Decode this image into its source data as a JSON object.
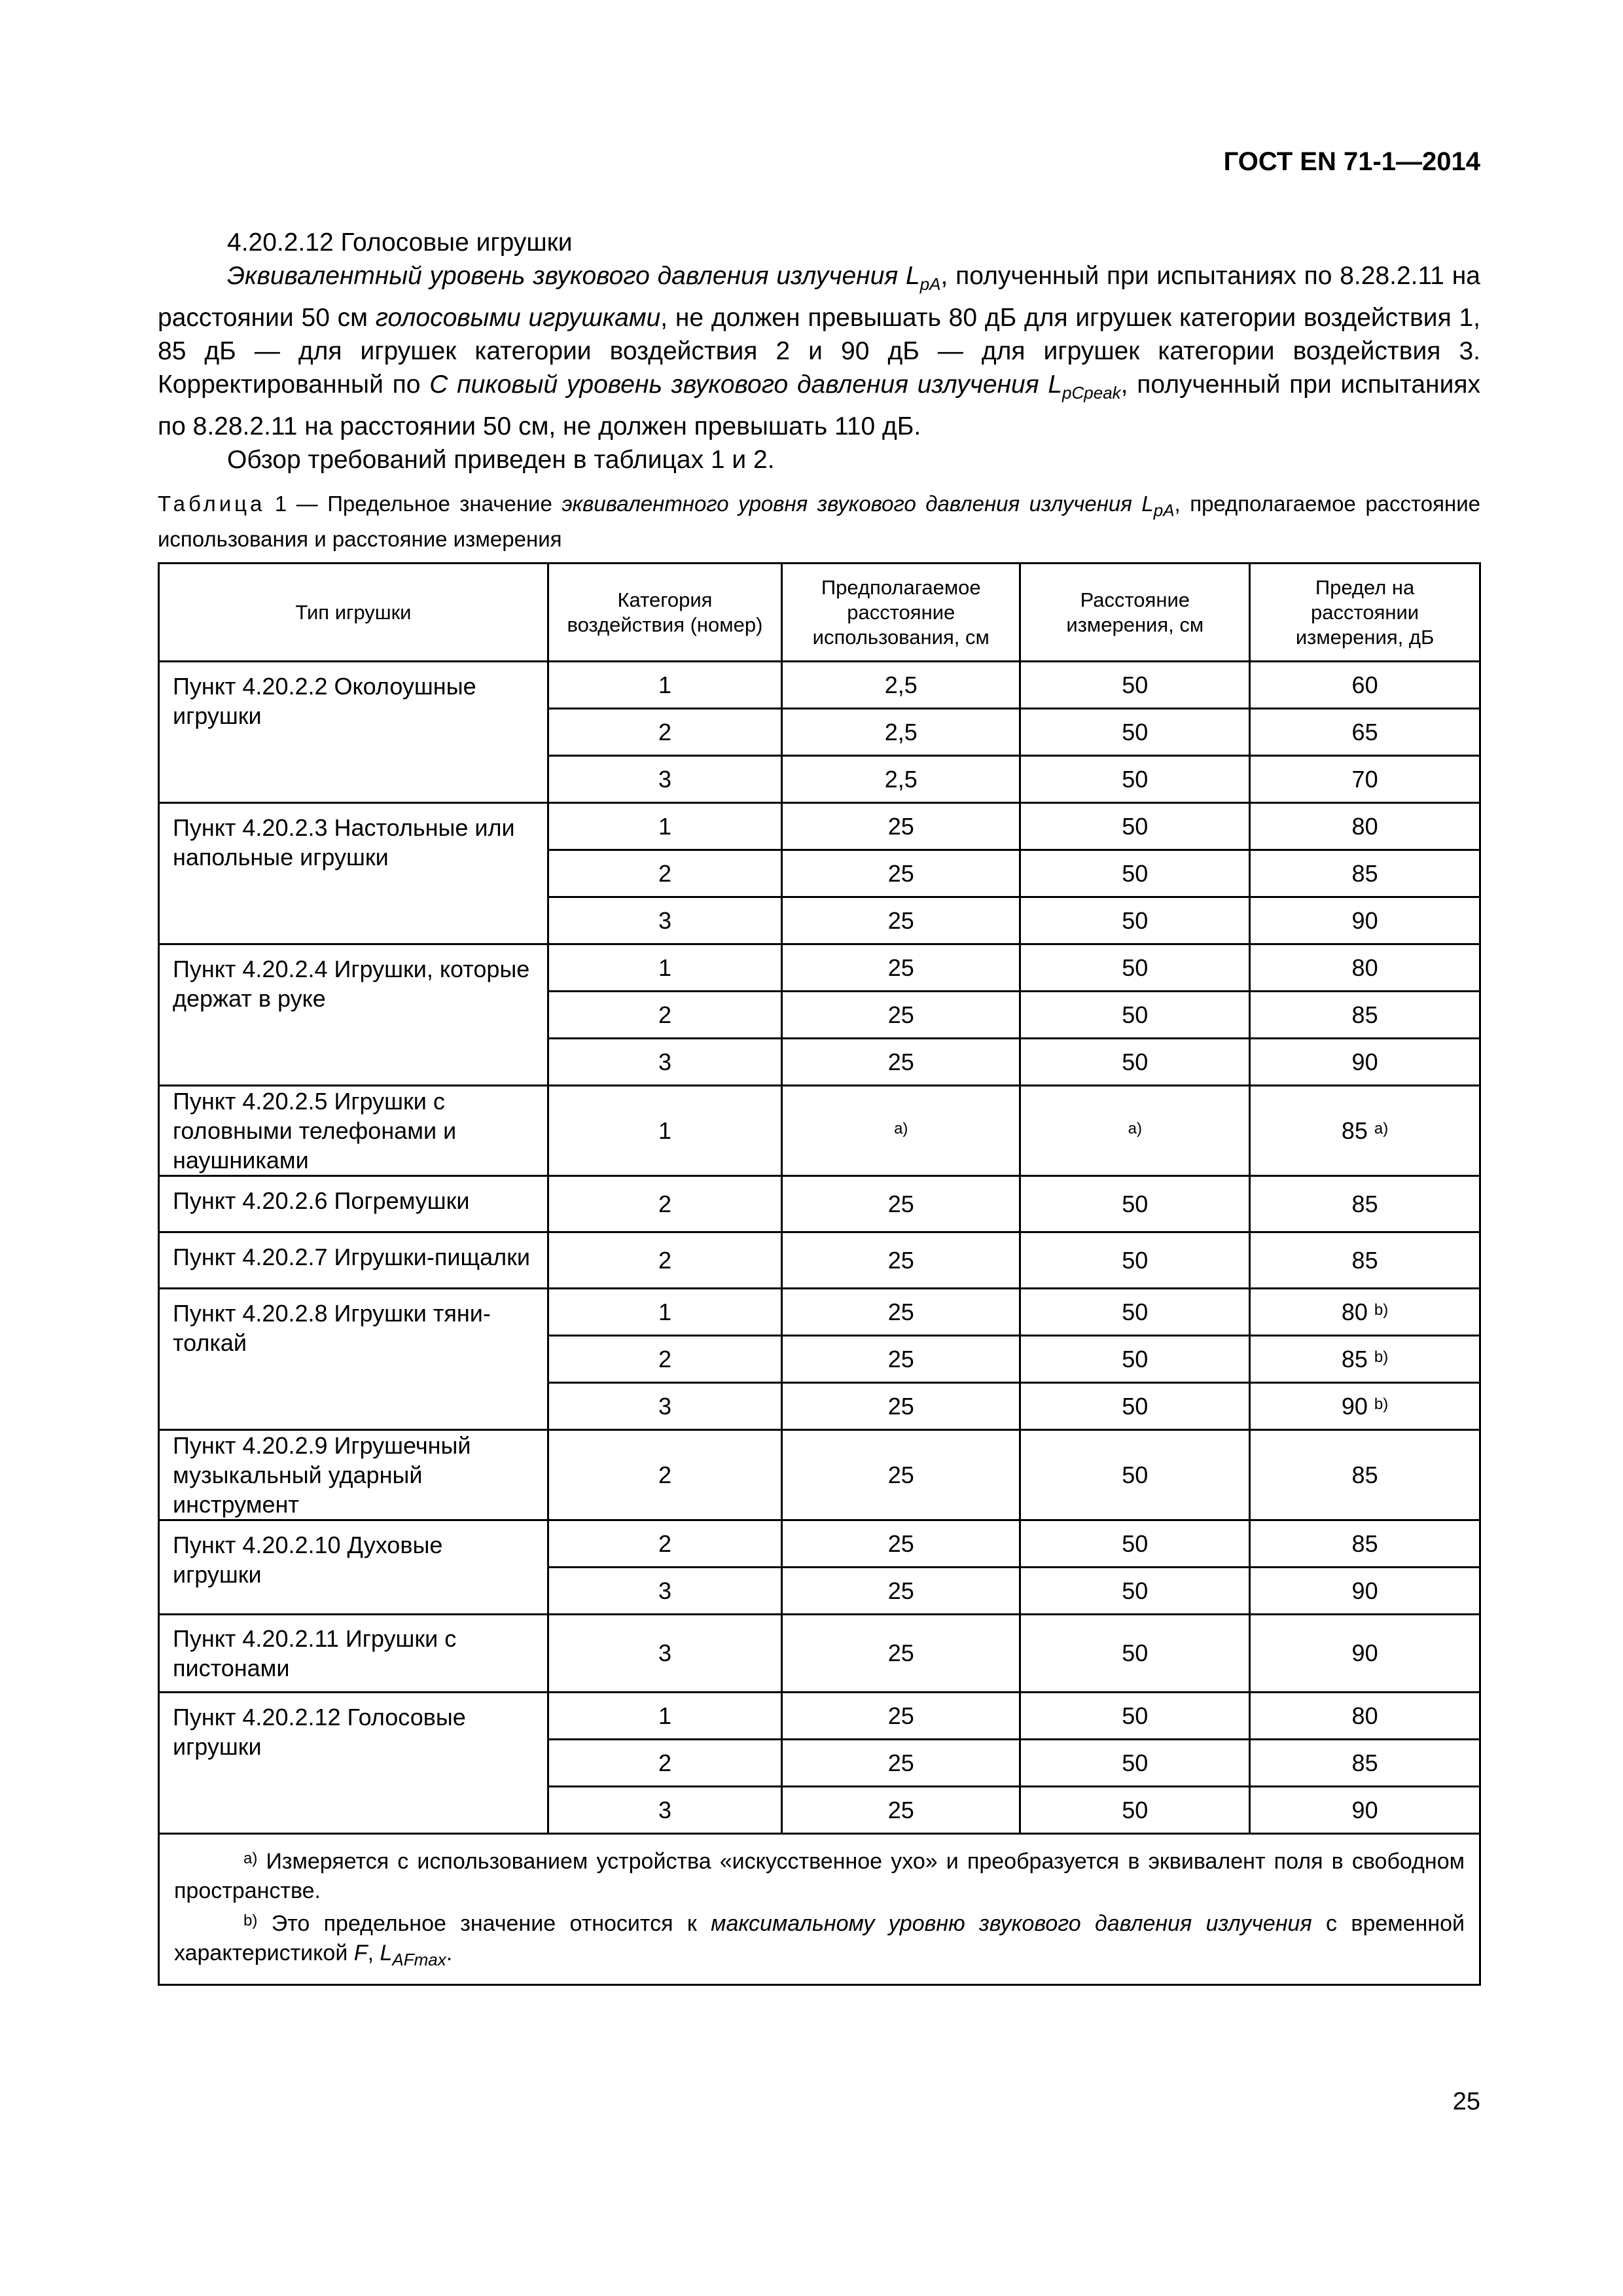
{
  "header": {
    "doc_id": "ГОСТ EN 71-1—2014"
  },
  "section": {
    "heading": "4.20.2.12 Голосовые игрушки",
    "p1": [
      {
        "t": "Эквивалентный уровень звукового давления излучения ",
        "i": true
      },
      {
        "t": "L",
        "i": true
      },
      {
        "t": "pA",
        "i": true,
        "sub": true
      },
      {
        "t": ", полученный при испытаниях по 8.28.2.11 на расстоянии 50 см "
      },
      {
        "t": "голосовыми игрушками",
        "i": true
      },
      {
        "t": ", не должен превышать 80 дБ для игрушек категории воздействия 1, 85 дБ — для игрушек категории воздействия 2 и 90 дБ — для игрушек категории воздействия 3. Корректированный по "
      },
      {
        "t": "С пиковый уровень звукового давления излучения L",
        "i": true
      },
      {
        "t": "pCpeak",
        "i": true,
        "sub": true
      },
      {
        "t": ", полученный при испытаниях по 8.28.2.11 на расстоянии 50 см, не должен превышать 110 дБ."
      }
    ],
    "p2": "Обзор требований приведен в таблицах 1 и 2."
  },
  "table": {
    "caption_label": "Таблица",
    "caption": [
      {
        "t": " 1 — Предельное значение "
      },
      {
        "t": "эквивалентного уровня звукового давления излучения L",
        "i": true
      },
      {
        "t": "pA",
        "i": true,
        "sub": true
      },
      {
        "t": ", предполагаемое расстояние использования и расстояние измерения"
      }
    ],
    "columns": [
      "Тип игрушки",
      "Категория воздействия (номер)",
      "Предполагаемое расстояние использования, см",
      "Расстояние измерения, см",
      "Предел на расстоянии измерения, дБ"
    ],
    "groups": [
      {
        "label": "Пункт 4.20.2.2 Околоушные игрушки",
        "rows": [
          [
            "1",
            "2,5",
            "50",
            "60"
          ],
          [
            "2",
            "2,5",
            "50",
            "65"
          ],
          [
            "3",
            "2,5",
            "50",
            "70"
          ]
        ]
      },
      {
        "label": "Пункт 4.20.2.3 Настольные или напольные игрушки",
        "rows": [
          [
            "1",
            "25",
            "50",
            "80"
          ],
          [
            "2",
            "25",
            "50",
            "85"
          ],
          [
            "3",
            "25",
            "50",
            "90"
          ]
        ]
      },
      {
        "label": "Пункт 4.20.2.4 Игрушки, которые держат в руке",
        "rows": [
          [
            "1",
            "25",
            "50",
            "80"
          ],
          [
            "2",
            "25",
            "50",
            "85"
          ],
          [
            "3",
            "25",
            "50",
            "90"
          ]
        ]
      },
      {
        "label": "Пункт 4.20.2.5 Игрушки с головными телефонами и наушниками",
        "tall": true,
        "rows": [
          [
            "1",
            "^a)",
            "^a)",
            "85 ^a)"
          ]
        ]
      },
      {
        "label": "Пункт 4.20.2.6 Погремушки",
        "rows": [
          [
            "2",
            "25",
            "50",
            "85"
          ]
        ]
      },
      {
        "label": "Пункт 4.20.2.7 Игрушки-пищалки",
        "rows": [
          [
            "2",
            "25",
            "50",
            "85"
          ]
        ]
      },
      {
        "label": "Пункт 4.20.2.8 Игрушки тяни-толкай",
        "rows": [
          [
            "1",
            "25",
            "50",
            "80 ^b)"
          ],
          [
            "2",
            "25",
            "50",
            "85 ^b)"
          ],
          [
            "3",
            "25",
            "50",
            "90 ^b)"
          ]
        ]
      },
      {
        "label": "Пункт 4.20.2.9 Игрушечный музыкальный ударный инструмент",
        "tall": true,
        "rows": [
          [
            "2",
            "25",
            "50",
            "85"
          ]
        ]
      },
      {
        "label": "Пункт 4.20.2.10 Духовые игрушки",
        "rows": [
          [
            "2",
            "25",
            "50",
            "85"
          ],
          [
            "3",
            "25",
            "50",
            "90"
          ]
        ]
      },
      {
        "label": "Пункт 4.20.2.11 Игрушки с пистонами",
        "tall": true,
        "rows": [
          [
            "3",
            "25",
            "50",
            "90"
          ]
        ]
      },
      {
        "label": "Пункт 4.20.2.12 Голосовые игрушки",
        "rows": [
          [
            "1",
            "25",
            "50",
            "80"
          ],
          [
            "2",
            "25",
            "50",
            "85"
          ],
          [
            "3",
            "25",
            "50",
            "90"
          ]
        ]
      }
    ],
    "notes": [
      [
        {
          "t": "a)",
          "sup": true
        },
        {
          "t": " Измеряется с использованием устройства «искусственное ухо» и преобразуется в эквивалент поля в свободном пространстве."
        }
      ],
      [
        {
          "t": "b)",
          "sup": true
        },
        {
          "t": " Это предельное значение относится к "
        },
        {
          "t": "максимальному уровню звукового давления излучения",
          "i": true
        },
        {
          "t": " с временной характеристикой "
        },
        {
          "t": "F",
          "i": true
        },
        {
          "t": ", "
        },
        {
          "t": "L",
          "i": true
        },
        {
          "t": "AFmax",
          "i": true,
          "sub": true
        },
        {
          "t": "."
        }
      ]
    ]
  },
  "page_number": "25"
}
